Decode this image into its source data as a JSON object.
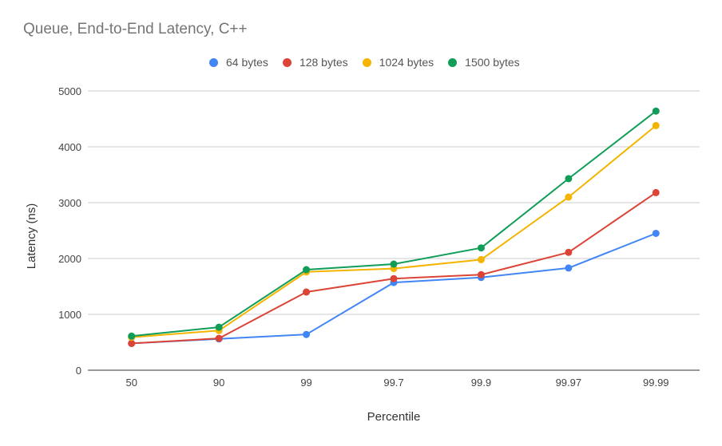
{
  "chart_data": {
    "type": "line",
    "title": "Queue, End-to-End Latency, C++",
    "xlabel": "Percentile",
    "ylabel": "Latency (ns)",
    "ylim": [
      0,
      5000
    ],
    "yticks": [
      0,
      1000,
      2000,
      3000,
      4000,
      5000
    ],
    "grid": true,
    "legend": "top",
    "categories": [
      "50",
      "90",
      "99",
      "99.7",
      "99.9",
      "99.97",
      "99.99"
    ],
    "series": [
      {
        "name": "64 bytes",
        "color": "#4285F4",
        "values": [
          480,
          560,
          640,
          1570,
          1660,
          1830,
          2450
        ]
      },
      {
        "name": "128 bytes",
        "color": "#DB4437",
        "values": [
          480,
          570,
          1400,
          1640,
          1710,
          2110,
          3180
        ]
      },
      {
        "name": "1024 bytes",
        "color": "#F4B400",
        "values": [
          590,
          710,
          1760,
          1820,
          1980,
          3100,
          4380
        ]
      },
      {
        "name": "1500 bytes",
        "color": "#0F9D58",
        "values": [
          610,
          770,
          1800,
          1900,
          2190,
          3430,
          4640
        ]
      }
    ]
  }
}
